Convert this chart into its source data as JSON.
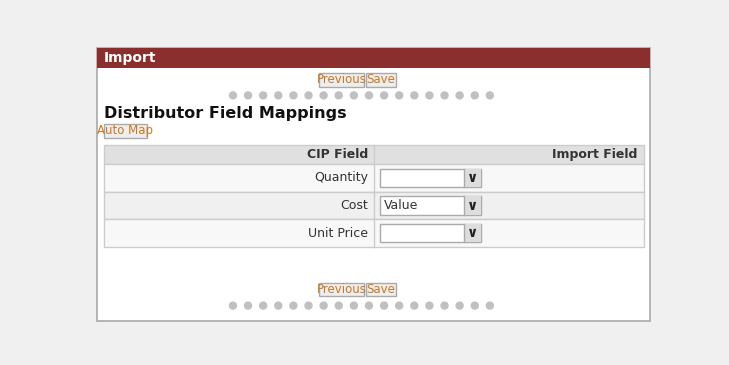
{
  "title": "Import",
  "title_bg": "#8B2E2E",
  "title_text_color": "#FFFFFF",
  "bg_color": "#F0F0F0",
  "panel_bg": "#FFFFFF",
  "outer_border_color": "#AAAAAA",
  "section_title": "Distributor Field Mappings",
  "auto_map_btn": "Auto Map",
  "table_header_bg": "#E0E0E0",
  "table_row1_bg": "#F8F8F8",
  "table_row2_bg": "#F0F0F0",
  "table_row3_bg": "#F8F8F8",
  "cip_field_label": "CIP Field",
  "import_field_label": "Import Field",
  "rows": [
    {
      "label": "Quantity",
      "value": ""
    },
    {
      "label": "Cost",
      "value": "Value"
    },
    {
      "label": "Unit Price",
      "value": ""
    }
  ],
  "btn_previous": "Previous",
  "btn_save": "Save",
  "dot_color": "#C0C0C0",
  "dot_count": 18,
  "table_border_color": "#CCCCCC",
  "btn_border_color": "#AAAAAA",
  "btn_bg": "#EEEEEE",
  "btn_text_color": "#CC7722",
  "dropdown_border": "#AAAAAA",
  "dropdown_bg": "#FFFFFF",
  "dropdown_arrow_bg": "#DDDDDD",
  "label_color": "#333333",
  "header_label_color": "#333333"
}
